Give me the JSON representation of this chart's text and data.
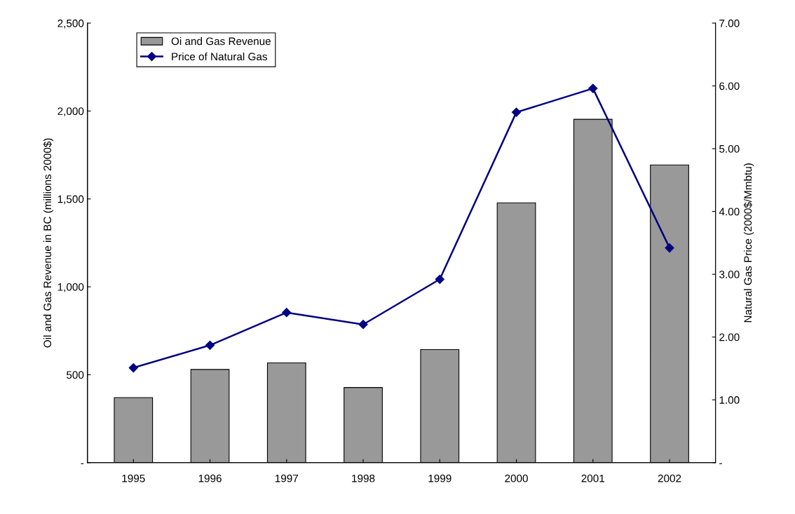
{
  "chart_data": {
    "type": "bar",
    "categories": [
      "1995",
      "1996",
      "1997",
      "1998",
      "1999",
      "2000",
      "2001",
      "2002"
    ],
    "ylabel": "Oil and Gas Revenue in BC (millions 2000$)",
    "y2label": "Natural Gas Price (2000$/Mmbtu)",
    "series": [
      {
        "name": "Oi and Gas Revenue",
        "color": "#999999",
        "values": [
          370,
          530,
          567,
          427,
          643,
          1478,
          1953,
          1693
        ]
      },
      {
        "name": "Price of Natural Gas",
        "type": "line",
        "axis": "y2",
        "color": "#000080",
        "marker": "diamond",
        "values": [
          1.51,
          1.87,
          2.39,
          2.2,
          2.92,
          5.58,
          5.96,
          3.42
        ]
      }
    ],
    "ylim": [
      0,
      2500
    ],
    "yticks": [
      {
        "value": 0,
        "label": "-"
      },
      {
        "value": 500,
        "label": "500"
      },
      {
        "value": 1000,
        "label": "1,000"
      },
      {
        "value": 1500,
        "label": "1,500"
      },
      {
        "value": 2000,
        "label": "2,000"
      },
      {
        "value": 2500,
        "label": "2,500"
      }
    ],
    "y2lim": [
      0,
      7
    ],
    "y2ticks": [
      {
        "value": 0,
        "label": "-"
      },
      {
        "value": 1,
        "label": "1.00"
      },
      {
        "value": 2,
        "label": "2.00"
      },
      {
        "value": 3,
        "label": "3.00"
      },
      {
        "value": 4,
        "label": "4.00"
      },
      {
        "value": 5,
        "label": "5.00"
      },
      {
        "value": 6,
        "label": "6.00"
      },
      {
        "value": 7,
        "label": "7.00"
      }
    ],
    "grid": false,
    "legend": "top left"
  }
}
